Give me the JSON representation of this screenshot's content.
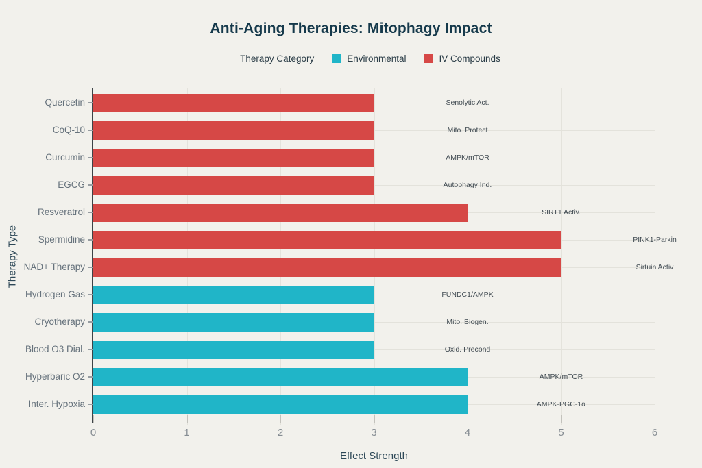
{
  "chart_data": {
    "type": "bar",
    "orientation": "horizontal",
    "title": "Anti-Aging Therapies: Mitophagy Impact",
    "xlabel": "Effect Strength",
    "ylabel": "Therapy Type",
    "xlim": [
      0,
      6
    ],
    "x_ticks": [
      0,
      1,
      2,
      3,
      4,
      5,
      6
    ],
    "grid": true,
    "background_color": "#f2f1ec",
    "legend": {
      "title": "Therapy Category",
      "position": "top-center",
      "items": [
        {
          "label": "Environmental",
          "color": "#20b5c8"
        },
        {
          "label": "IV Compounds",
          "color": "#d64846"
        }
      ]
    },
    "rows": [
      {
        "category": "Quercetin",
        "series": "IV Compounds",
        "value": 3,
        "annotation": "Senolytic Act."
      },
      {
        "category": "CoQ-10",
        "series": "IV Compounds",
        "value": 3,
        "annotation": "Mito. Protect"
      },
      {
        "category": "Curcumin",
        "series": "IV Compounds",
        "value": 3,
        "annotation": "AMPK/mTOR"
      },
      {
        "category": "EGCG",
        "series": "IV Compounds",
        "value": 3,
        "annotation": "Autophagy Ind."
      },
      {
        "category": "Resveratrol",
        "series": "IV Compounds",
        "value": 4,
        "annotation": "SIRT1 Activ."
      },
      {
        "category": "Spermidine",
        "series": "IV Compounds",
        "value": 5,
        "annotation": "PINK1-Parkin"
      },
      {
        "category": "NAD+ Therapy",
        "series": "IV Compounds",
        "value": 5,
        "annotation": "Sirtuin Activ"
      },
      {
        "category": "Hydrogen Gas",
        "series": "Environmental",
        "value": 3,
        "annotation": "FUNDC1/AMPK"
      },
      {
        "category": "Cryotherapy",
        "series": "Environmental",
        "value": 3,
        "annotation": "Mito. Biogen."
      },
      {
        "category": "Blood O3 Dial.",
        "series": "Environmental",
        "value": 3,
        "annotation": "Oxid. Precond"
      },
      {
        "category": "Hyperbaric O2",
        "series": "Environmental",
        "value": 4,
        "annotation": "AMPK/mTOR"
      },
      {
        "category": "Inter. Hypoxia",
        "series": "Environmental",
        "value": 4,
        "annotation": "AMPK-PGC-1α"
      }
    ]
  }
}
